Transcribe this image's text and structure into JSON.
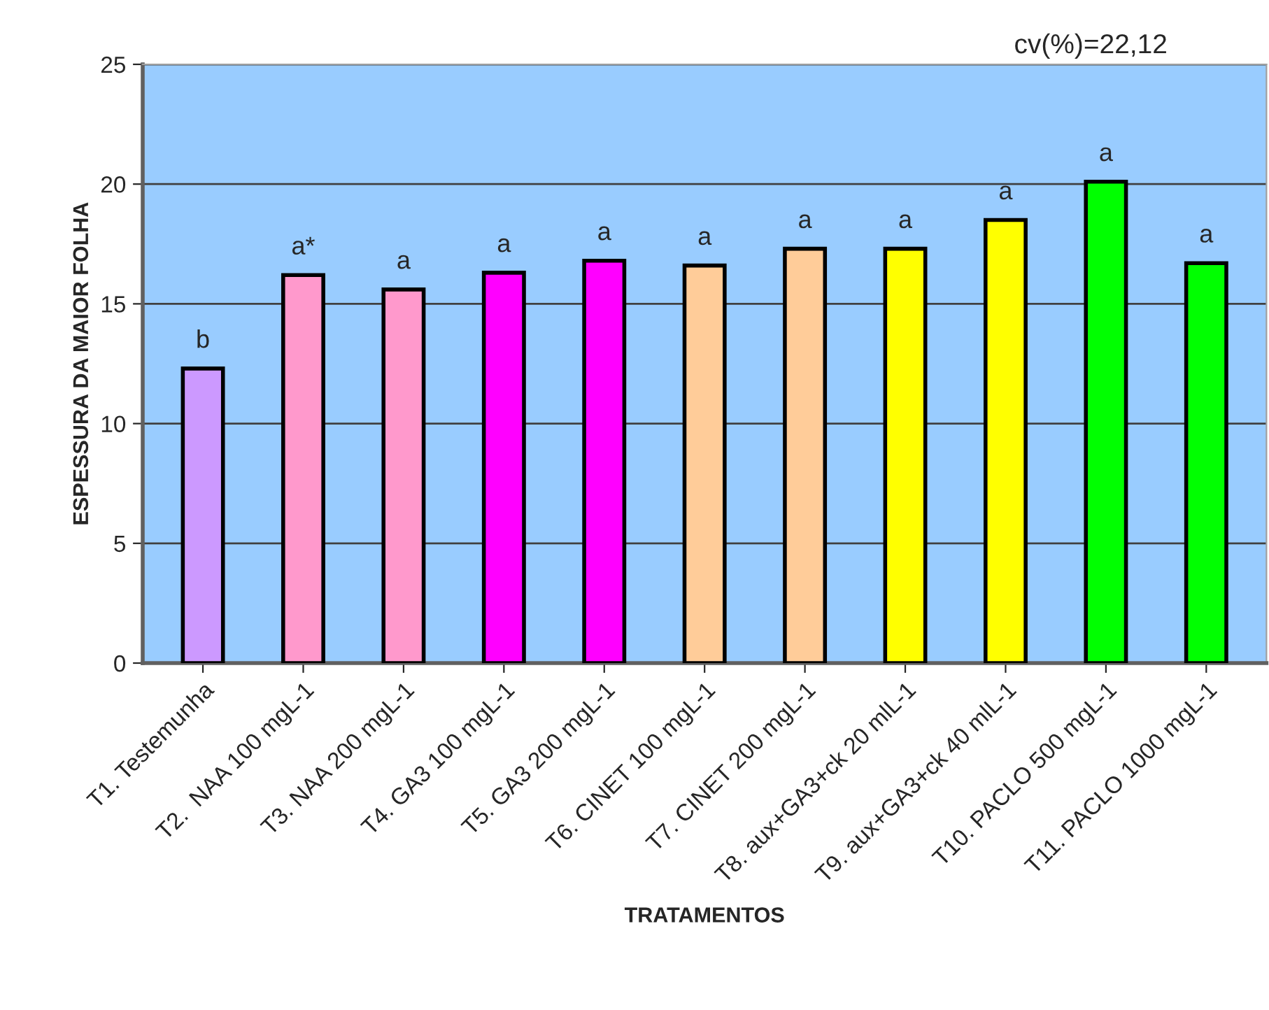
{
  "chart_data": {
    "type": "bar",
    "xlabel": "TRATAMENTOS",
    "ylabel": "ESPESSURA DA MAIOR FOLHA",
    "categories": [
      "T1. Testemunha",
      "T2.  NAA 100 mgL-1",
      "T3. NAA 200 mgL-1",
      "T4. GA3 100 mgL-1",
      "T5. GA3 200 mgL-1",
      "T6. CINET 100 mgL-1",
      "T7. CINET 200 mgL-1",
      "T8. aux+GA3+ck 20 mlL-1",
      "T9. aux+GA3+ck 40 mlL-1",
      "T10. PACLO 500 mgL-1",
      "T11. PACLO 1000 mgL-1"
    ],
    "values": [
      12.3,
      16.2,
      15.6,
      16.3,
      16.8,
      16.6,
      17.3,
      17.3,
      18.5,
      20.1,
      16.7
    ],
    "colors": [
      "#cc99ff",
      "#ff99cc",
      "#ff99cc",
      "#ff00ff",
      "#ff00ff",
      "#ffcc99",
      "#ffcc99",
      "#ffff00",
      "#ffff00",
      "#00ff00",
      "#00ff00"
    ],
    "ylim": [
      0,
      25
    ],
    "yticks": [
      0,
      5,
      10,
      15,
      20,
      25
    ],
    "grid": "y",
    "value_labels": [
      "b",
      "a*",
      "a",
      "a",
      "a",
      "a",
      "a",
      "a",
      "a",
      "a",
      "a"
    ],
    "annotations": [
      "cv(%)=22,12"
    ]
  }
}
